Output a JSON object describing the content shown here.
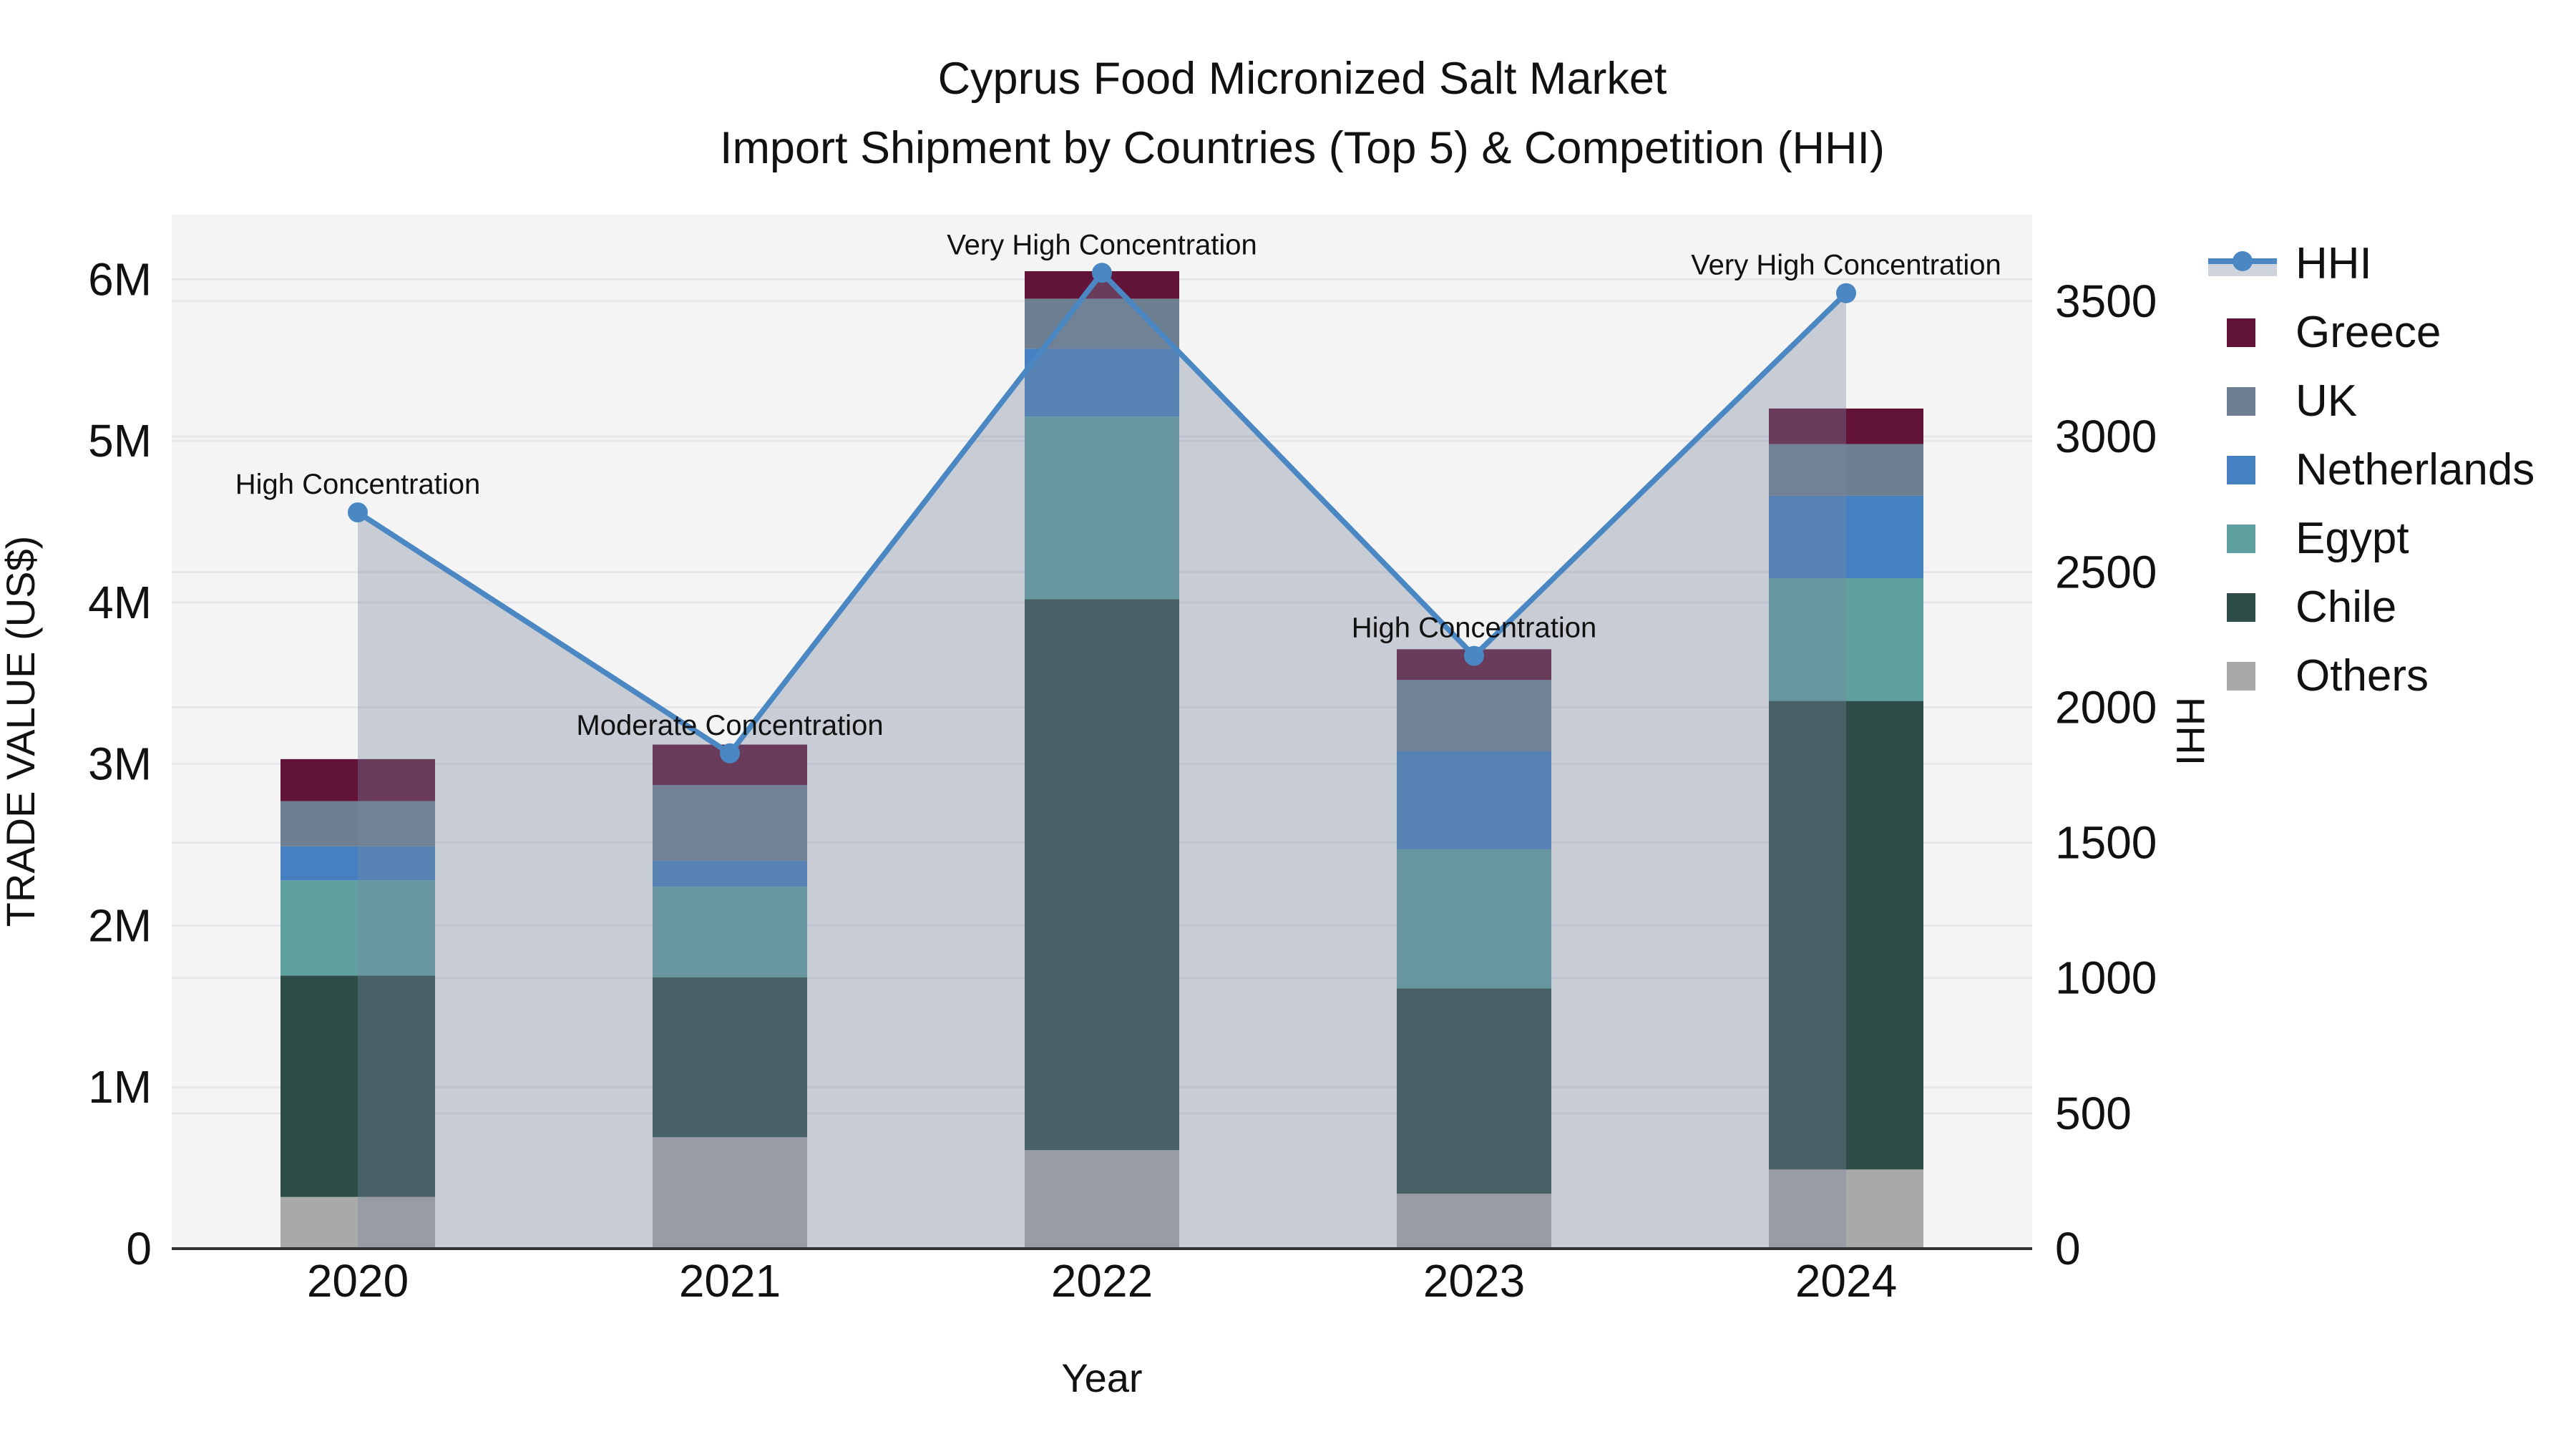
{
  "title": {
    "line1": "Cyprus Food Micronized Salt Market",
    "line2": "Import Shipment by Countries (Top 5) & Competition (HHI)"
  },
  "chart_data": {
    "type": "bar+line",
    "categories": [
      "2020",
      "2021",
      "2022",
      "2023",
      "2024"
    ],
    "x_axis": {
      "label": "Year"
    },
    "left_axis": {
      "label": "TRADE VALUE (US$)",
      "ticks": [
        "0",
        "1M",
        "2M",
        "3M",
        "4M",
        "5M",
        "6M"
      ],
      "tick_values": [
        0,
        1,
        2,
        3,
        4,
        5,
        6
      ],
      "max": 6.4,
      "units": "millions USD"
    },
    "right_axis": {
      "label": "HHI",
      "ticks": [
        "0",
        "500",
        "1000",
        "1500",
        "2000",
        "2500",
        "3000",
        "3500"
      ],
      "tick_values": [
        0,
        500,
        1000,
        1500,
        2000,
        2500,
        3000,
        3500
      ],
      "max": 3820
    },
    "series": [
      {
        "name": "Others",
        "color": "#a9a9a9",
        "values": [
          0.32,
          0.69,
          0.61,
          0.34,
          0.49
        ]
      },
      {
        "name": "Chile",
        "color": "#2e4d48",
        "values": [
          1.37,
          0.99,
          3.41,
          1.27,
          2.9
        ]
      },
      {
        "name": "Egypt",
        "color": "#5fa0a0",
        "values": [
          0.59,
          0.56,
          1.13,
          0.86,
          0.76
        ]
      },
      {
        "name": "Netherlands",
        "color": "#4581c1",
        "values": [
          0.21,
          0.16,
          0.42,
          0.61,
          0.51
        ]
      },
      {
        "name": "UK",
        "color": "#6e7f92",
        "values": [
          0.28,
          0.47,
          0.31,
          0.44,
          0.32
        ]
      },
      {
        "name": "Greece",
        "color": "#621338",
        "values": [
          0.26,
          0.25,
          0.17,
          0.19,
          0.22
        ]
      }
    ],
    "bar_totals_musd": [
      3.03,
      3.12,
      6.05,
      3.71,
      5.2
    ],
    "hhi": {
      "name": "HHI",
      "values": [
        2720,
        1830,
        3605,
        2190,
        3530
      ],
      "line_color": "#4a87c3",
      "area_color": "rgba(118,134,158,0.36)"
    },
    "annotations": [
      "High Concentration",
      "Moderate Concentration",
      "Very High Concentration",
      "High Concentration",
      "Very High Concentration"
    ],
    "legend": [
      {
        "label": "HHI",
        "type": "line"
      },
      {
        "label": "Greece",
        "type": "patch"
      },
      {
        "label": "UK",
        "type": "patch"
      },
      {
        "label": "Netherlands",
        "type": "patch"
      },
      {
        "label": "Egypt",
        "type": "patch"
      },
      {
        "label": "Chile",
        "type": "patch"
      },
      {
        "label": "Others",
        "type": "patch"
      }
    ],
    "legend_position": "right",
    "grid": true,
    "plot_bg_color": "#f4f4f5"
  }
}
